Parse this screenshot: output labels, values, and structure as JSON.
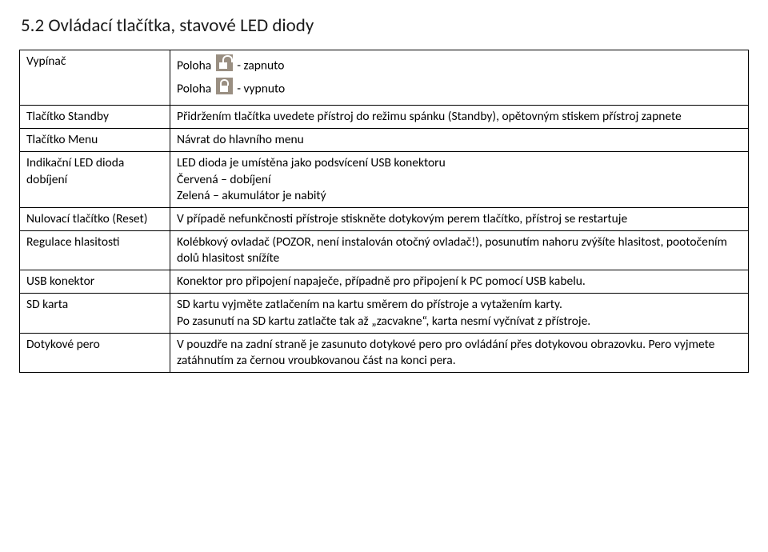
{
  "heading": "5.2 Ovládací tlačítka, stavové LED diody",
  "rows": {
    "r0_left": "Vypínač",
    "r0_right_prefix1": "Poloha",
    "r0_right_suffix1": "- zapnuto",
    "r0_right_prefix2": "Poloha",
    "r0_right_suffix2": "- vypnuto",
    "r1_left": "Tlačítko Standby",
    "r1_right": "Přidržením tlačítka uvedete přístroj do režimu spánku (Standby), opětovným stiskem přístroj zapnete",
    "r2_left": "Tlačítko Menu",
    "r2_right": "Návrat do hlavního menu",
    "r3_left": "Indikační LED dioda dobíjení",
    "r3_right_l1": "LED dioda je umístěna jako podsvícení USB konektoru",
    "r3_right_l2": "Červená – dobíjení",
    "r3_right_l3": "Zelená – akumulátor je nabitý",
    "r4_left": "Nulovací tlačítko (Reset)",
    "r4_right": "V případě nefunkčnosti přístroje stiskněte dotykovým perem tlačítko, přístroj se restartuje",
    "r5_left": "Regulace hlasitosti",
    "r5_right": "Kolébkový ovladač (POZOR, není instalován otočný ovladač!), posunutím nahoru zvýšíte hlasitost, pootočením dolů hlasitost snížíte",
    "r6_left": "USB konektor",
    "r6_right": "Konektor pro připojení napaječe, případně pro připojení k PC pomocí USB kabelu.",
    "r7_left": "SD karta",
    "r7_right": "SD kartu vyjměte zatlačením na kartu směrem do přístroje a vytažením karty.\nPo zasunutí  na SD kartu zatlačte tak až „zacvakne“, karta nesmí vyčnívat z přístroje.",
    "r8_left": "Dotykové pero",
    "r8_right": "V pouzdře na zadní straně je zasunuto dotykové pero pro ovládání přes dotykovou obrazovku. Pero vyjmete zatáhnutím za černou vroubkovanou část na konci pera."
  }
}
